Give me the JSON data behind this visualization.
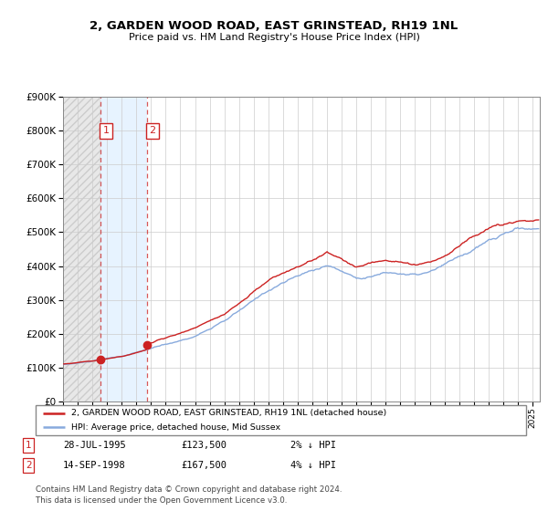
{
  "title": "2, GARDEN WOOD ROAD, EAST GRINSTEAD, RH19 1NL",
  "subtitle": "Price paid vs. HM Land Registry's House Price Index (HPI)",
  "sale1_date": 1995.57,
  "sale1_price": 123500,
  "sale1_label": "1",
  "sale2_date": 1998.71,
  "sale2_price": 167500,
  "sale2_label": "2",
  "hpi_line_color": "#88aadd",
  "price_line_color": "#cc2222",
  "sale_marker_color": "#cc2222",
  "legend1": "2, GARDEN WOOD ROAD, EAST GRINSTEAD, RH19 1NL (detached house)",
  "legend2": "HPI: Average price, detached house, Mid Sussex",
  "table_row1": [
    "1",
    "28-JUL-1995",
    "£123,500",
    "2% ↓ HPI"
  ],
  "table_row2": [
    "2",
    "14-SEP-1998",
    "£167,500",
    "4% ↓ HPI"
  ],
  "footnote": "Contains HM Land Registry data © Crown copyright and database right 2024.\nThis data is licensed under the Open Government Licence v3.0.",
  "ylim_max": 900000,
  "xlim_start": 1993.0,
  "xlim_end": 2025.5,
  "background_color": "#ffffff"
}
